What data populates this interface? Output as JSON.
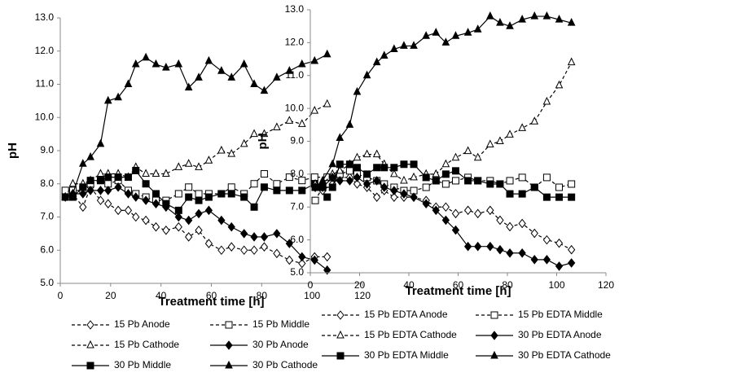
{
  "chart_data": [
    {
      "type": "line",
      "x_label": "Treatment time [h]",
      "y_label": "pH",
      "x": [
        2,
        5,
        9,
        12,
        16,
        19,
        23,
        27,
        30,
        34,
        38,
        42,
        47,
        51,
        55,
        59,
        64,
        68,
        73,
        77,
        81,
        86,
        91,
        96,
        101,
        106
      ],
      "xlim": [
        0,
        120
      ],
      "xticks": [
        0,
        20,
        40,
        60,
        80,
        100,
        120
      ],
      "ylim": [
        5,
        13
      ],
      "yticks": [
        {
          "value": 5,
          "label": "5.0"
        },
        {
          "value": 6,
          "label": "6.0"
        },
        {
          "value": 7,
          "label": "7.0"
        },
        {
          "value": 8,
          "label": "8.0"
        },
        {
          "value": 9,
          "label": "9.0"
        },
        {
          "value": 10,
          "label": "10.0"
        },
        {
          "value": 11,
          "label": "11.0"
        },
        {
          "value": 12,
          "label": "12.0"
        },
        {
          "value": 13,
          "label": "13.0"
        }
      ],
      "series": [
        {
          "name": "15 Pb Anode",
          "color": "#000000",
          "marker": "diamond",
          "filled": false,
          "dashed": true,
          "values": [
            7.7,
            7.7,
            7.3,
            7.9,
            7.5,
            7.4,
            7.2,
            7.2,
            7.0,
            6.9,
            6.7,
            6.6,
            6.7,
            6.4,
            6.6,
            6.2,
            6.0,
            6.1,
            6.0,
            6.0,
            6.1,
            5.9,
            5.7,
            5.6,
            5.8,
            5.8
          ]
        },
        {
          "name": "15 Pb Middle",
          "color": "#000000",
          "marker": "square",
          "filled": false,
          "dashed": true,
          "values": [
            7.8,
            7.8,
            7.8,
            8.0,
            8.1,
            8.0,
            8.1,
            7.8,
            7.7,
            7.6,
            7.5,
            7.5,
            7.7,
            7.9,
            7.7,
            7.7,
            7.7,
            7.9,
            7.7,
            8.0,
            8.3,
            8.0,
            8.2,
            8.1,
            8.2,
            8.2
          ]
        },
        {
          "name": "15 Pb Cathode",
          "color": "#000000",
          "marker": "triangle",
          "filled": false,
          "dashed": true,
          "values": [
            7.6,
            8.0,
            8.0,
            8.1,
            8.3,
            8.3,
            8.3,
            8.2,
            8.5,
            8.3,
            8.3,
            8.3,
            8.5,
            8.6,
            8.5,
            8.7,
            9.0,
            8.9,
            9.2,
            9.5,
            9.5,
            9.7,
            9.9,
            9.8,
            10.2,
            10.4
          ]
        },
        {
          "name": "30 Pb Anode",
          "color": "#000000",
          "marker": "diamond",
          "filled": true,
          "dashed": false,
          "values": [
            7.6,
            7.7,
            7.7,
            7.8,
            7.8,
            7.8,
            7.9,
            7.7,
            7.6,
            7.5,
            7.4,
            7.3,
            7.0,
            6.9,
            7.1,
            7.2,
            6.9,
            6.7,
            6.5,
            6.4,
            6.4,
            6.5,
            6.2,
            5.8,
            5.7,
            5.4
          ]
        },
        {
          "name": "30 Pb Middle",
          "color": "#000000",
          "marker": "square",
          "filled": true,
          "dashed": false,
          "values": [
            7.6,
            7.6,
            7.9,
            8.1,
            8.1,
            8.2,
            8.2,
            8.2,
            8.4,
            8.0,
            7.7,
            7.4,
            7.2,
            7.6,
            7.5,
            7.6,
            7.7,
            7.7,
            7.6,
            7.3,
            7.9,
            7.8,
            7.8,
            7.8,
            8.0,
            7.6
          ]
        },
        {
          "name": "30 Pb Cathode",
          "color": "#000000",
          "marker": "triangle",
          "filled": true,
          "dashed": false,
          "values": [
            7.6,
            7.7,
            8.6,
            8.8,
            9.2,
            10.5,
            10.6,
            11.0,
            11.6,
            11.8,
            11.6,
            11.5,
            11.6,
            10.9,
            11.2,
            11.7,
            11.4,
            11.2,
            11.6,
            11.0,
            10.8,
            11.2,
            11.4,
            11.6,
            11.7,
            11.9
          ]
        }
      ]
    },
    {
      "type": "line",
      "x_label": "Treatment time [h]",
      "y_label": "pH",
      "x": [
        2,
        5,
        9,
        12,
        16,
        19,
        23,
        27,
        30,
        34,
        38,
        42,
        47,
        51,
        55,
        59,
        64,
        68,
        73,
        77,
        81,
        86,
        91,
        96,
        101,
        106
      ],
      "xlim": [
        0,
        120
      ],
      "xticks": [
        0,
        20,
        40,
        60,
        80,
        100,
        120
      ],
      "ylim": [
        5,
        13
      ],
      "yticks": [
        {
          "value": 5,
          "label": "5.0"
        },
        {
          "value": 6,
          "label": "6.0"
        },
        {
          "value": 7,
          "label": "7.0"
        },
        {
          "value": 8,
          "label": "8.0"
        },
        {
          "value": 9,
          "label": "9.0"
        },
        {
          "value": 10,
          "label": "10.0"
        },
        {
          "value": 11,
          "label": "11.0"
        },
        {
          "value": 12,
          "label": "12.0"
        },
        {
          "value": 13,
          "label": "13.0"
        }
      ],
      "series": [
        {
          "name": "15 Pb EDTA Anode",
          "color": "#000000",
          "marker": "diamond",
          "filled": false,
          "dashed": true,
          "values": [
            7.6,
            7.5,
            7.7,
            7.9,
            7.9,
            7.7,
            7.6,
            7.3,
            7.5,
            7.3,
            7.3,
            7.3,
            7.2,
            7.0,
            7.0,
            6.8,
            6.9,
            6.8,
            6.9,
            6.6,
            6.4,
            6.5,
            6.2,
            6.0,
            5.9,
            5.7
          ]
        },
        {
          "name": "15 Pb EDTA Middle",
          "color": "#000000",
          "marker": "square",
          "filled": false,
          "dashed": true,
          "values": [
            7.2,
            7.6,
            7.9,
            8.0,
            8.1,
            8.0,
            7.9,
            7.8,
            7.7,
            7.6,
            7.5,
            7.5,
            7.6,
            7.8,
            7.7,
            7.8,
            7.9,
            7.8,
            7.8,
            7.7,
            7.8,
            7.9,
            7.6,
            7.9,
            7.6,
            7.7
          ]
        },
        {
          "name": "15 Pb EDTA Cathode",
          "color": "#000000",
          "marker": "triangle",
          "filled": false,
          "dashed": true,
          "values": [
            7.7,
            7.7,
            8.0,
            8.1,
            8.3,
            8.5,
            8.6,
            8.6,
            8.3,
            8.0,
            7.8,
            7.9,
            8.0,
            8.0,
            8.3,
            8.5,
            8.7,
            8.5,
            8.9,
            9.0,
            9.2,
            9.4,
            9.6,
            10.2,
            10.7,
            11.4
          ]
        },
        {
          "name": "30 Pb EDTA Anode",
          "color": "#000000",
          "marker": "diamond",
          "filled": true,
          "dashed": false,
          "values": [
            7.6,
            7.6,
            7.9,
            7.8,
            7.8,
            7.9,
            7.7,
            7.8,
            7.6,
            7.5,
            7.4,
            7.3,
            7.1,
            6.9,
            6.6,
            6.3,
            5.8,
            5.8,
            5.8,
            5.7,
            5.6,
            5.6,
            5.4,
            5.4,
            5.2,
            5.3
          ]
        },
        {
          "name": "30 Pb EDTA Middle",
          "color": "#000000",
          "marker": "square",
          "filled": true,
          "dashed": false,
          "values": [
            7.6,
            7.6,
            7.6,
            8.3,
            8.3,
            8.2,
            8.0,
            8.2,
            8.2,
            8.2,
            8.3,
            8.3,
            7.9,
            7.8,
            8.0,
            8.1,
            7.8,
            7.8,
            7.7,
            7.7,
            7.4,
            7.4,
            7.6,
            7.3,
            7.3,
            7.3
          ]
        },
        {
          "name": "30 Pb EDTA Cathode",
          "color": "#000000",
          "marker": "triangle",
          "filled": true,
          "dashed": false,
          "values": [
            7.6,
            7.8,
            8.3,
            9.1,
            9.5,
            10.5,
            11.0,
            11.4,
            11.6,
            11.8,
            11.9,
            11.9,
            12.2,
            12.3,
            12.0,
            12.2,
            12.3,
            12.4,
            12.8,
            12.6,
            12.5,
            12.7,
            12.8,
            12.8,
            12.7,
            12.6
          ]
        }
      ]
    }
  ]
}
